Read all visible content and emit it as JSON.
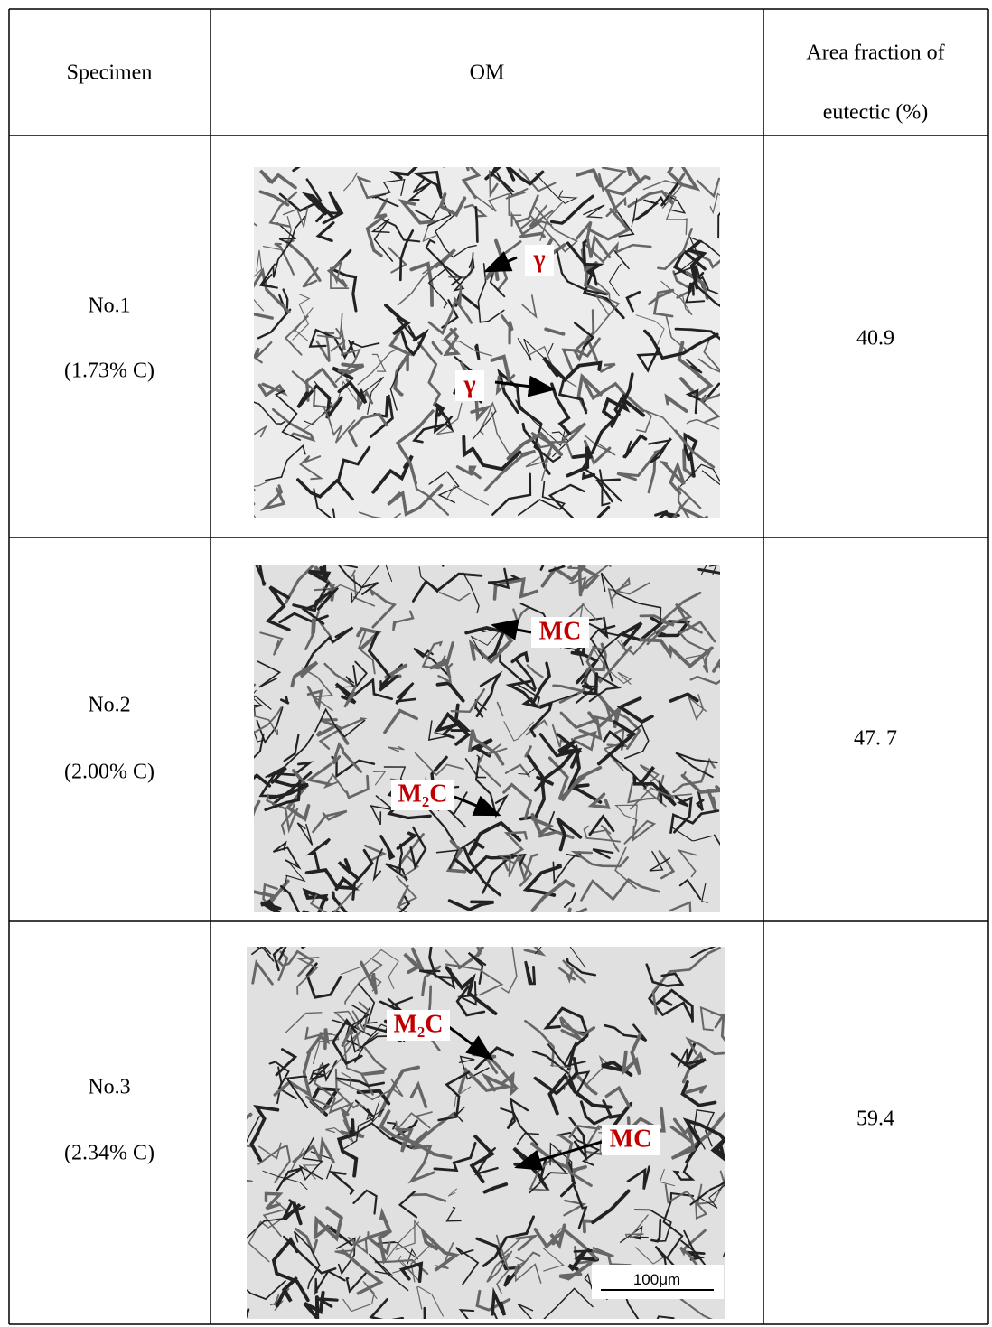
{
  "table": {
    "header": {
      "specimen": "Specimen",
      "om": "OM",
      "area_fraction": [
        "Area fraction of",
        "eutectic (%)"
      ]
    },
    "rows": [
      {
        "specimen": "No.1",
        "carbon": "(1.73% C)",
        "labels": [
          "γ",
          "γ"
        ],
        "area_fraction": "40.9"
      },
      {
        "specimen": "No.2",
        "carbon": "(2.00% C)",
        "labels": [
          "MC",
          "M₂C"
        ],
        "area_fraction": "47. 7"
      },
      {
        "specimen": "No.3",
        "carbon": "(2.34% C)",
        "labels": [
          "M₂C",
          "MC"
        ],
        "area_fraction": "59.4"
      }
    ],
    "scale_bar": "100μm"
  }
}
